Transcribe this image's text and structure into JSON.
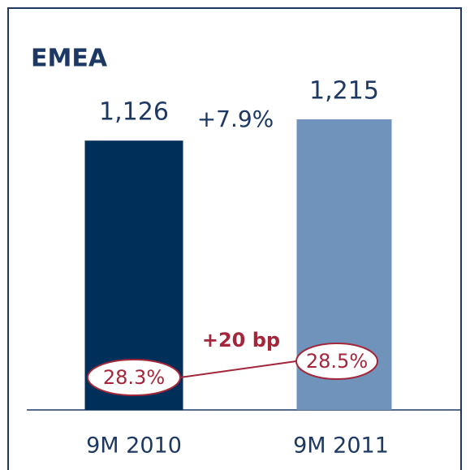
{
  "chart_data": {
    "type": "bar",
    "title": "EMEA",
    "categories": [
      "9M 2010",
      "9M 2011"
    ],
    "series": [
      {
        "name": null,
        "colors": [
          "#002f5a",
          "#6f93bb"
        ],
        "values": [
          1126,
          1215
        ],
        "value_labels": [
          "1,126",
          "1,215"
        ]
      }
    ],
    "annotations": [
      "+7.9%",
      "+20 bp"
    ],
    "margins": {
      "values": [
        28.3,
        28.5
      ],
      "value_labels": [
        "28.3%",
        "28.5%"
      ],
      "color": "#a3263a"
    }
  }
}
